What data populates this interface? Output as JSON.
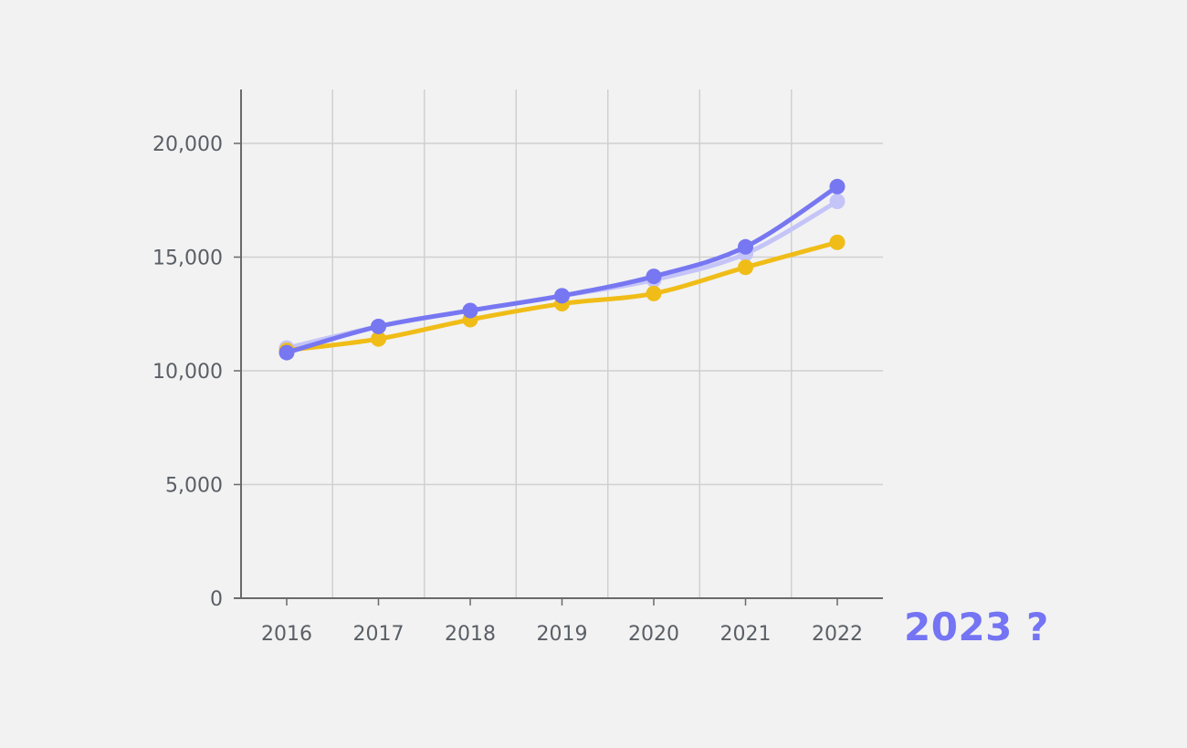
{
  "annotation": {
    "text": "2023 ?"
  },
  "colors": {
    "series_primary": "#7777f2",
    "series_secondary": "#c4c4f8",
    "series_tertiary": "#f0bd18",
    "grid": "#d0d0d0",
    "axis": "#6a6a6a",
    "annotation": "#7474f4"
  },
  "chart_data": {
    "type": "line",
    "x": [
      "2016",
      "2017",
      "2018",
      "2019",
      "2020",
      "2021",
      "2022"
    ],
    "ylim": [
      0,
      22000
    ],
    "yticks": [
      0,
      5000,
      10000,
      15000,
      20000
    ],
    "ytick_labels": [
      "0",
      "5,000",
      "10,000",
      "15,000",
      "20,000"
    ],
    "grid": "on",
    "series": [
      {
        "values": [
          11000,
          11950,
          12650,
          13300,
          14000,
          15150,
          17450
        ]
      },
      {
        "values": [
          10800,
          11950,
          12650,
          13300,
          14150,
          15450,
          18100
        ]
      },
      {
        "values": [
          10900,
          11400,
          12250,
          12950,
          13400,
          14550,
          15650
        ]
      }
    ]
  }
}
